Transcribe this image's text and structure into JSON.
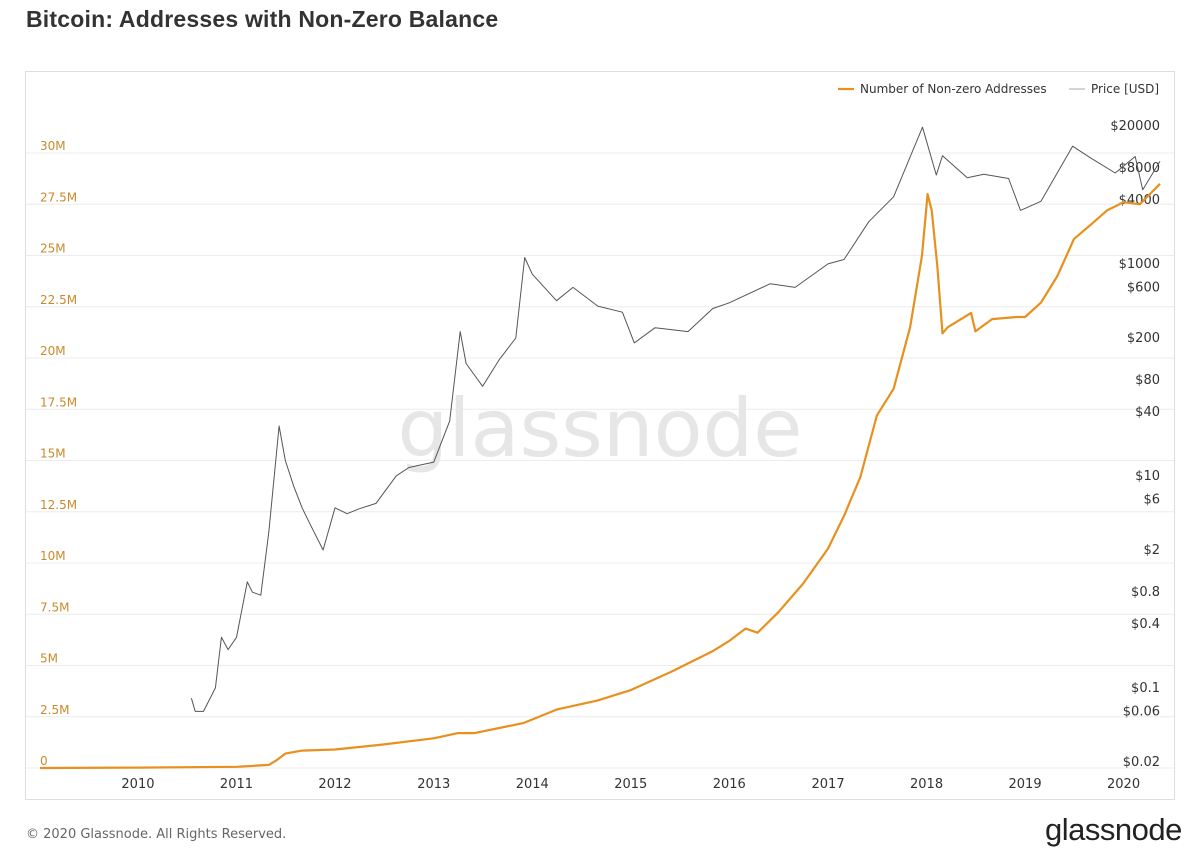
{
  "page": {
    "title": "Bitcoin: Addresses with Non-Zero Balance",
    "copyright": "© 2020 Glassnode. All Rights Reserved.",
    "logo_text": "glassnode",
    "watermark_text": "glassnode"
  },
  "colors": {
    "addresses": "#f7931a",
    "addresses_line": "#e8901e",
    "price": "#555555",
    "left_axis_text": "#c98a2a",
    "right_axis_text": "#333333",
    "grid": "#ececec",
    "watermark": "#e6e6e6"
  },
  "chart_data": {
    "type": "line",
    "title": "Bitcoin: Addresses with Non-Zero Balance",
    "legend": {
      "position": "top-right",
      "entries": [
        "Number of Non-zero Addresses",
        "Price [USD]"
      ]
    },
    "grid": true,
    "x_axis": {
      "ticks": [
        "2010",
        "2011",
        "2012",
        "2013",
        "2014",
        "2015",
        "2016",
        "2017",
        "2018",
        "2019",
        "2020"
      ],
      "range": [
        "2009-01-03",
        "2020-05-15"
      ]
    },
    "y_left": {
      "scale": "linear",
      "range": [
        0,
        30000000
      ],
      "tick_values": [
        0,
        2500000,
        5000000,
        7500000,
        10000000,
        12500000,
        15000000,
        17500000,
        20000000,
        22500000,
        25000000,
        27500000,
        30000000
      ],
      "tick_labels": [
        "0",
        "2.5M",
        "5M",
        "7.5M",
        "10M",
        "12.5M",
        "15M",
        "17.5M",
        "20M",
        "22.5M",
        "25M",
        "27.5M",
        "30M"
      ]
    },
    "y_right": {
      "scale": "log",
      "tick_values": [
        20000,
        8000,
        4000,
        1000,
        600,
        200,
        80,
        40,
        10,
        6,
        2,
        0.8,
        0.4,
        0.1,
        0.06,
        0.02
      ],
      "tick_labels": [
        "$20000",
        "$8000",
        "$4000",
        "$1000",
        "$600",
        "$200",
        "$80",
        "$40",
        "$10",
        "$6",
        "$2",
        "$0.8",
        "$0.4",
        "$0.1",
        "$0.06",
        "$0.02"
      ]
    },
    "series": [
      {
        "name": "Number of Non-zero Addresses",
        "axis": "left",
        "points": [
          [
            "2009-01-03",
            0
          ],
          [
            "2010-01-01",
            20000
          ],
          [
            "2011-01-01",
            60000
          ],
          [
            "2011-05-01",
            150000
          ],
          [
            "2011-06-01",
            400000
          ],
          [
            "2011-07-01",
            700000
          ],
          [
            "2011-09-01",
            850000
          ],
          [
            "2012-01-01",
            900000
          ],
          [
            "2012-07-01",
            1150000
          ],
          [
            "2013-01-01",
            1450000
          ],
          [
            "2013-04-01",
            1700000
          ],
          [
            "2013-06-01",
            1700000
          ],
          [
            "2013-09-01",
            1950000
          ],
          [
            "2013-12-01",
            2200000
          ],
          [
            "2014-04-01",
            2850000
          ],
          [
            "2014-09-01",
            3300000
          ],
          [
            "2015-01-01",
            3800000
          ],
          [
            "2015-06-01",
            4700000
          ],
          [
            "2015-11-01",
            5700000
          ],
          [
            "2016-01-01",
            6200000
          ],
          [
            "2016-03-01",
            6800000
          ],
          [
            "2016-04-15",
            6600000
          ],
          [
            "2016-07-01",
            7600000
          ],
          [
            "2016-10-01",
            9000000
          ],
          [
            "2017-01-01",
            10700000
          ],
          [
            "2017-03-01",
            12300000
          ],
          [
            "2017-05-01",
            14200000
          ],
          [
            "2017-07-01",
            17200000
          ],
          [
            "2017-09-01",
            18500000
          ],
          [
            "2017-11-01",
            21500000
          ],
          [
            "2017-12-15",
            25000000
          ],
          [
            "2018-01-05",
            28000000
          ],
          [
            "2018-01-20",
            27200000
          ],
          [
            "2018-02-10",
            24500000
          ],
          [
            "2018-03-01",
            21200000
          ],
          [
            "2018-03-20",
            21500000
          ],
          [
            "2018-06-15",
            22200000
          ],
          [
            "2018-07-01",
            21300000
          ],
          [
            "2018-09-01",
            21900000
          ],
          [
            "2018-12-01",
            22000000
          ],
          [
            "2019-01-01",
            22000000
          ],
          [
            "2019-03-01",
            22700000
          ],
          [
            "2019-05-01",
            24000000
          ],
          [
            "2019-07-01",
            25800000
          ],
          [
            "2019-09-01",
            26500000
          ],
          [
            "2019-11-01",
            27200000
          ],
          [
            "2020-01-01",
            27600000
          ],
          [
            "2020-03-01",
            27500000
          ],
          [
            "2020-05-15",
            28500000
          ]
        ]
      },
      {
        "name": "Price [USD]",
        "axis": "right",
        "points": [
          [
            "2010-07-18",
            0.08
          ],
          [
            "2010-08-01",
            0.06
          ],
          [
            "2010-09-01",
            0.06
          ],
          [
            "2010-10-15",
            0.1
          ],
          [
            "2010-11-06",
            0.3
          ],
          [
            "2010-12-01",
            0.23
          ],
          [
            "2011-01-01",
            0.3
          ],
          [
            "2011-02-10",
            1.0
          ],
          [
            "2011-03-01",
            0.8
          ],
          [
            "2011-04-01",
            0.75
          ],
          [
            "2011-05-01",
            3.0
          ],
          [
            "2011-06-08",
            29.6
          ],
          [
            "2011-07-01",
            14.0
          ],
          [
            "2011-08-01",
            8.0
          ],
          [
            "2011-09-01",
            5.0
          ],
          [
            "2011-10-01",
            3.5
          ],
          [
            "2011-11-18",
            2.0
          ],
          [
            "2012-01-01",
            5.0
          ],
          [
            "2012-02-15",
            4.4
          ],
          [
            "2012-04-01",
            4.9
          ],
          [
            "2012-06-01",
            5.5
          ],
          [
            "2012-08-15",
            10.0
          ],
          [
            "2012-10-01",
            12.0
          ],
          [
            "2013-01-01",
            13.5
          ],
          [
            "2013-03-01",
            33.0
          ],
          [
            "2013-04-09",
            230.0
          ],
          [
            "2013-05-01",
            115.0
          ],
          [
            "2013-07-01",
            70.0
          ],
          [
            "2013-09-01",
            125.0
          ],
          [
            "2013-11-01",
            200.0
          ],
          [
            "2013-12-04",
            1150.0
          ],
          [
            "2014-01-01",
            800.0
          ],
          [
            "2014-04-01",
            450.0
          ],
          [
            "2014-06-01",
            600.0
          ],
          [
            "2014-09-01",
            400.0
          ],
          [
            "2014-12-01",
            350.0
          ],
          [
            "2015-01-14",
            180.0
          ],
          [
            "2015-04-01",
            250.0
          ],
          [
            "2015-08-01",
            230.0
          ],
          [
            "2015-11-01",
            380.0
          ],
          [
            "2016-01-01",
            430.0
          ],
          [
            "2016-06-01",
            650.0
          ],
          [
            "2016-09-01",
            600.0
          ],
          [
            "2017-01-01",
            1000.0
          ],
          [
            "2017-03-01",
            1100.0
          ],
          [
            "2017-06-01",
            2500.0
          ],
          [
            "2017-09-01",
            4300.0
          ],
          [
            "2017-12-17",
            19500.0
          ],
          [
            "2018-02-06",
            6900.0
          ],
          [
            "2018-03-01",
            10500.0
          ],
          [
            "2018-06-01",
            6500.0
          ],
          [
            "2018-08-01",
            7000.0
          ],
          [
            "2018-11-01",
            6400.0
          ],
          [
            "2018-12-15",
            3200.0
          ],
          [
            "2019-03-01",
            3900.0
          ],
          [
            "2019-06-26",
            12900.0
          ],
          [
            "2019-09-01",
            10000.0
          ],
          [
            "2019-12-01",
            7200.0
          ],
          [
            "2020-02-13",
            10300.0
          ],
          [
            "2020-03-12",
            5000.0
          ],
          [
            "2020-05-15",
            9300.0
          ]
        ]
      }
    ]
  }
}
